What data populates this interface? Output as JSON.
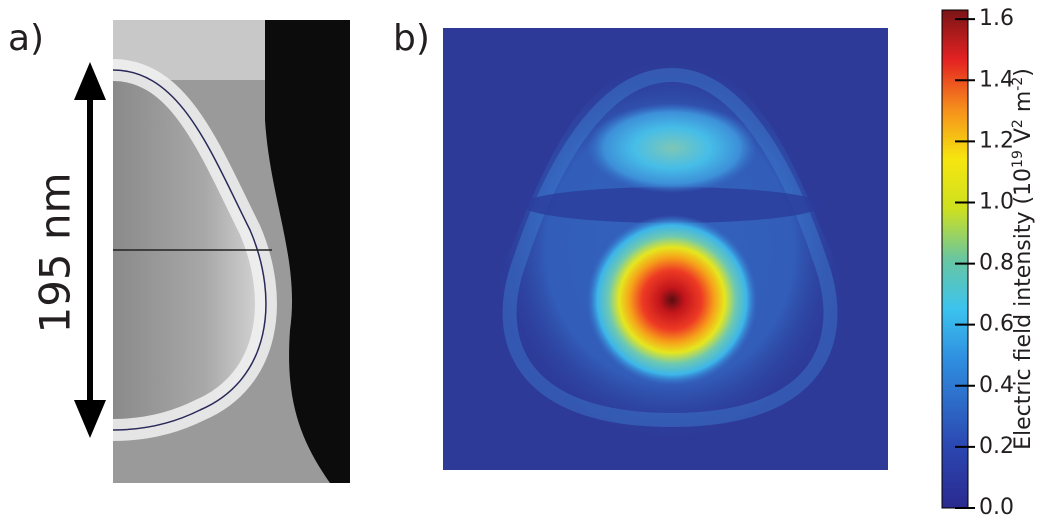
{
  "panels": [
    {
      "label": "a)",
      "annotation": "195 nm"
    },
    {
      "label": "b)"
    }
  ],
  "colorbar": {
    "label_parts": [
      "Electric field intensity (10",
      "19",
      " V",
      "2",
      " m",
      "-2",
      ")"
    ],
    "lim": [
      0,
      1.63
    ],
    "ticks": [
      {
        "value": 0,
        "label": "0.0"
      },
      0.2,
      0.4,
      0.6,
      0.8,
      {
        "value": 1,
        "label": "1.0"
      },
      1.2,
      1.4,
      1.6
    ]
  }
}
